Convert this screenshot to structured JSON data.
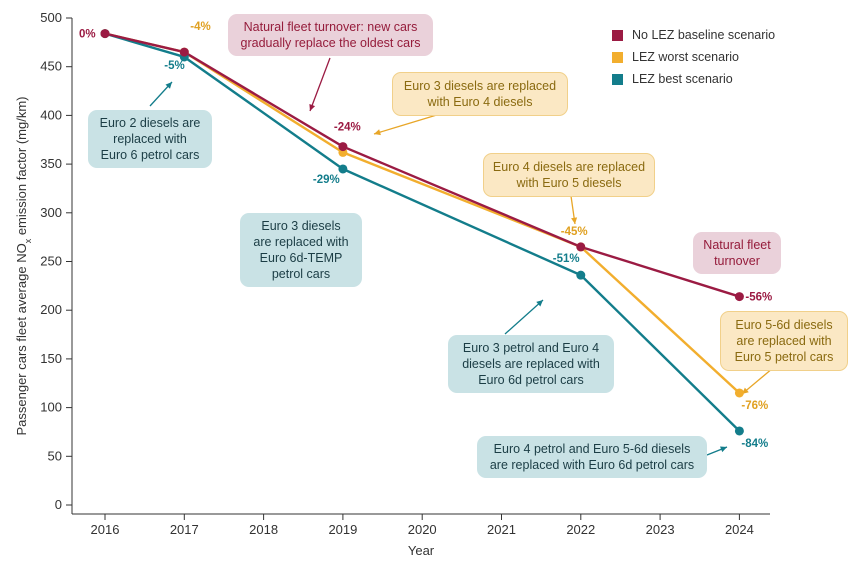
{
  "chart_data": {
    "type": "line",
    "xlabel": "Year",
    "ylabel_main": "Passenger cars fleet average NO",
    "ylabel_sub": "x",
    "ylabel_tail": " emission factor (mg/km)",
    "ylim": [
      0,
      500
    ],
    "yticks": [
      0,
      50,
      100,
      150,
      200,
      250,
      300,
      350,
      400,
      450,
      500
    ],
    "xticks": [
      2016,
      2017,
      2018,
      2019,
      2020,
      2021,
      2022,
      2023,
      2024
    ],
    "grid": false,
    "legend_position": "top-right",
    "series": [
      {
        "name": "No LEZ baseline scenario",
        "color": "#9b1b43",
        "x": [
          2016,
          2017,
          2019,
          2022,
          2024
        ],
        "y": [
          484,
          465,
          368,
          265,
          214
        ]
      },
      {
        "name": "LEZ worst scenario",
        "color": "#f2ae2e",
        "x": [
          2016,
          2017,
          2019,
          2022,
          2024
        ],
        "y": [
          484,
          465,
          362,
          265,
          115
        ]
      },
      {
        "name": "LEZ best scenario",
        "color": "#137d8b",
        "x": [
          2016,
          2017,
          2019,
          2022,
          2024
        ],
        "y": [
          484,
          460,
          345,
          236,
          76
        ]
      }
    ],
    "point_labels": [
      {
        "text": "0%",
        "series": 0,
        "x": 2016,
        "y": 484,
        "color": "#9b1b43"
      },
      {
        "text": "-4%",
        "series": 1,
        "x": 2017,
        "y": 465,
        "color": "#e0a020"
      },
      {
        "text": "-5%",
        "series": 2,
        "x": 2017,
        "y": 460,
        "color": "#137d8b"
      },
      {
        "text": "-24%",
        "series": 0,
        "x": 2019,
        "y": 368,
        "color": "#9b1b43"
      },
      {
        "text": "-29%",
        "series": 2,
        "x": 2019,
        "y": 345,
        "color": "#137d8b"
      },
      {
        "text": "-45%",
        "series": 1,
        "x": 2022,
        "y": 265,
        "color": "#e0a020"
      },
      {
        "text": "-51%",
        "series": 2,
        "x": 2022,
        "y": 236,
        "color": "#137d8b"
      },
      {
        "text": "-56%",
        "series": 0,
        "x": 2024,
        "y": 214,
        "color": "#9b1b43"
      },
      {
        "text": "-76%",
        "series": 1,
        "x": 2024,
        "y": 115,
        "color": "#e0a020"
      },
      {
        "text": "-84%",
        "series": 2,
        "x": 2024,
        "y": 76,
        "color": "#137d8b"
      }
    ],
    "annotations": [
      {
        "text": "Natural fleet turnover: new cars\ngradually replace the oldest cars",
        "style": "red"
      },
      {
        "text": "Euro 2 diesels are\nreplaced with\nEuro 6 petrol cars",
        "style": "teal"
      },
      {
        "text": "Euro 3 diesels are replaced\nwith Euro 4 diesels",
        "style": "yellow"
      },
      {
        "text": "Euro 4 diesels are replaced\nwith Euro 5 diesels",
        "style": "yellow"
      },
      {
        "text": "Euro 3 diesels\nare replaced with\nEuro 6d-TEMP\npetrol cars",
        "style": "teal"
      },
      {
        "text": "Natural fleet\nturnover",
        "style": "red"
      },
      {
        "text": "Euro 5-6d diesels\nare replaced with\nEuro 5 petrol cars",
        "style": "yellow"
      },
      {
        "text": "Euro 3 petrol and Euro 4\ndiesels are replaced with\nEuro 6d petrol cars",
        "style": "teal"
      },
      {
        "text": "Euro 4 petrol and Euro 5-6d diesels\nare replaced with Euro 6d petrol cars",
        "style": "teal"
      }
    ]
  }
}
